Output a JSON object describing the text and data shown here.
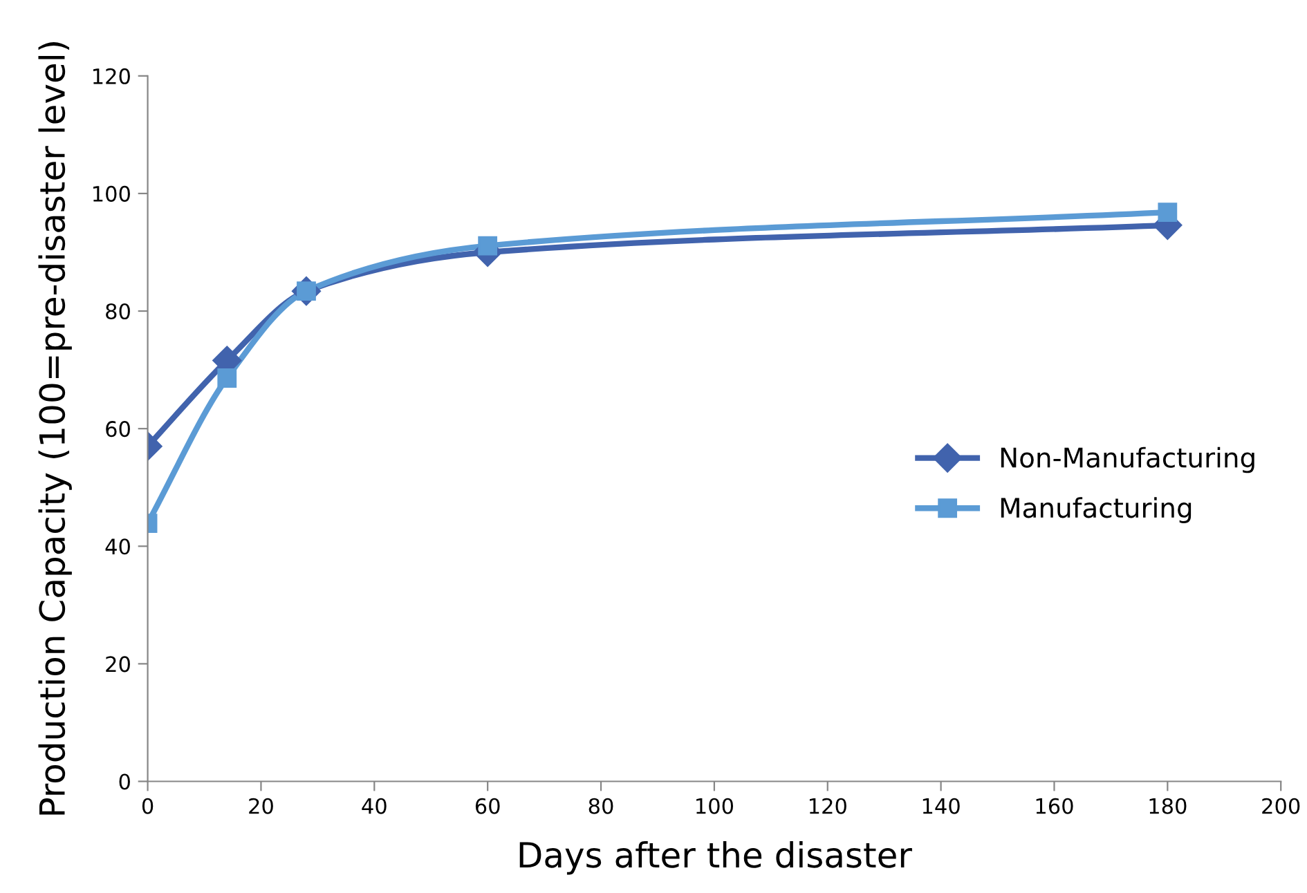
{
  "chart_data": {
    "type": "line",
    "xlabel": "Days after the disaster",
    "ylabel": "Production Capacity (100=pre-disaster level)",
    "x": [
      0,
      14,
      28,
      60,
      180
    ],
    "series": [
      {
        "name": "Non-Manufacturing",
        "color": "#4163ad",
        "marker": "diamond",
        "values": [
          57,
          71.6,
          83.4,
          90,
          94.6
        ]
      },
      {
        "name": "Manufacturing",
        "color": "#5b9bd5",
        "marker": "square",
        "values": [
          43.9,
          68.6,
          83.4,
          91.1,
          96.8
        ]
      }
    ],
    "xlim": [
      0,
      200
    ],
    "xticks": [
      0,
      20,
      40,
      60,
      80,
      100,
      120,
      140,
      160,
      180,
      200
    ],
    "ylim": [
      0,
      120
    ],
    "yticks": [
      0,
      20,
      40,
      60,
      80,
      100,
      120
    ],
    "grid": false,
    "legend": "right",
    "line_style": "solid"
  }
}
